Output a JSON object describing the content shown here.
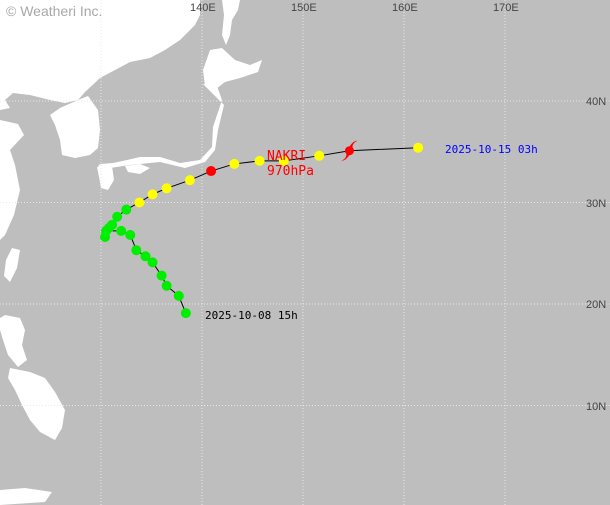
{
  "copyright": "© Weatheri Inc.",
  "colors": {
    "sea": "#bebebe",
    "land": "#ffffff",
    "grid": "#e8e8e8",
    "track_line": "#000000",
    "td": "#00ee00",
    "ts": "#ffff00",
    "typhoon": "#ff0000",
    "start_label": "#000000",
    "end_label": "#0000ff",
    "storm_label": "#ff0000"
  },
  "axes": {
    "lon_labels": [
      {
        "lon": 140,
        "text": "140E"
      },
      {
        "lon": 150,
        "text": "150E"
      },
      {
        "lon": 160,
        "text": "160E"
      },
      {
        "lon": 170,
        "text": "170E"
      }
    ],
    "lat_labels": [
      {
        "lat": 40,
        "text": "40N"
      },
      {
        "lat": 30,
        "text": "30N"
      },
      {
        "lat": 20,
        "text": "20N"
      },
      {
        "lat": 10,
        "text": "10N"
      }
    ],
    "grid_lons": [
      130,
      140,
      150,
      160,
      170
    ],
    "grid_lats": [
      10,
      20,
      30,
      40
    ]
  },
  "storm": {
    "name": "NAKRI",
    "pressure": "970hPa",
    "current_position": {
      "lon": 154.6,
      "lat": 35.1
    },
    "current_icon": "typhoon-symbol-icon",
    "start_label": "2025-10-08 15h",
    "end_label": "2025-10-15 03h"
  },
  "track": [
    {
      "lon": 138.4,
      "lat": 19.1,
      "cat": "td"
    },
    {
      "lon": 137.7,
      "lat": 20.8,
      "cat": "td"
    },
    {
      "lon": 136.5,
      "lat": 21.8,
      "cat": "td"
    },
    {
      "lon": 136.0,
      "lat": 22.8,
      "cat": "td"
    },
    {
      "lon": 135.1,
      "lat": 24.1,
      "cat": "td"
    },
    {
      "lon": 134.4,
      "lat": 24.7,
      "cat": "td"
    },
    {
      "lon": 133.5,
      "lat": 25.3,
      "cat": "td"
    },
    {
      "lon": 132.9,
      "lat": 26.8,
      "cat": "td"
    },
    {
      "lon": 132.0,
      "lat": 27.2,
      "cat": "td"
    },
    {
      "lon": 130.5,
      "lat": 27.2,
      "cat": "td"
    },
    {
      "lon": 130.4,
      "lat": 26.6,
      "cat": "td"
    },
    {
      "lon": 130.8,
      "lat": 27.5,
      "cat": "td"
    },
    {
      "lon": 131.1,
      "lat": 27.8,
      "cat": "td"
    },
    {
      "lon": 131.6,
      "lat": 28.6,
      "cat": "td"
    },
    {
      "lon": 132.5,
      "lat": 29.3,
      "cat": "td"
    },
    {
      "lon": 133.8,
      "lat": 30.0,
      "cat": "ts"
    },
    {
      "lon": 135.1,
      "lat": 30.8,
      "cat": "ts"
    },
    {
      "lon": 136.5,
      "lat": 31.4,
      "cat": "ts"
    },
    {
      "lon": 138.8,
      "lat": 32.2,
      "cat": "ts"
    },
    {
      "lon": 140.9,
      "lat": 33.1,
      "cat": "typhoon"
    },
    {
      "lon": 143.2,
      "lat": 33.8,
      "cat": "ts"
    },
    {
      "lon": 145.7,
      "lat": 34.1,
      "cat": "ts"
    },
    {
      "lon": 148.1,
      "lat": 34.1,
      "cat": "ts"
    },
    {
      "lon": 151.6,
      "lat": 34.6,
      "cat": "ts"
    },
    {
      "lon": 154.6,
      "lat": 35.1,
      "cat": "current"
    },
    {
      "lon": 161.4,
      "lat": 35.4,
      "cat": "ts"
    }
  ]
}
